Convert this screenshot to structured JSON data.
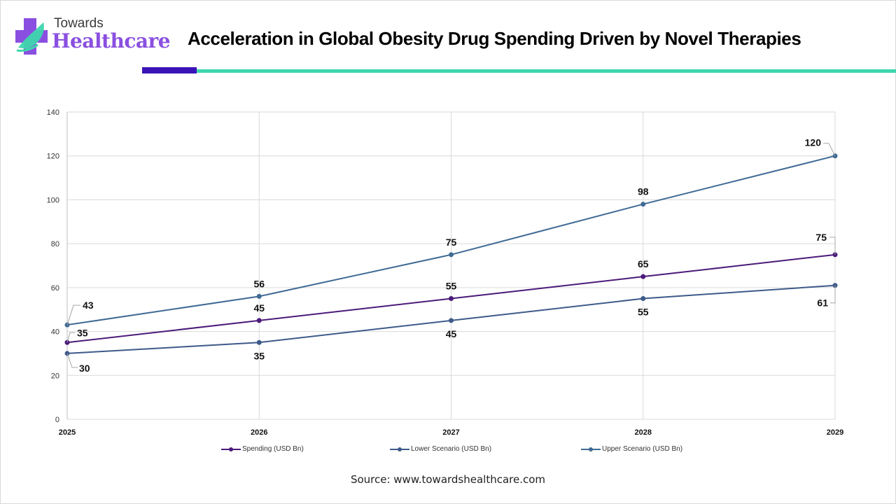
{
  "brand": {
    "line1": "Towards",
    "line2": "Healthcare",
    "icon": "medical-cross-leaf-icon",
    "colors": {
      "purple": "#8a4fe0",
      "teal": "#3ed6ad",
      "dark_purple": "#3a14b8"
    }
  },
  "source": "Source: www.towardshealthcare.com",
  "chart_data": {
    "type": "line",
    "title": "Acceleration in Global Obesity Drug Spending Driven by Novel Therapies",
    "xlabel": "",
    "ylabel": "",
    "categories": [
      "2025",
      "2026",
      "2027",
      "2028",
      "2029"
    ],
    "ylim": [
      0,
      140
    ],
    "yticks": [
      0,
      20,
      40,
      60,
      80,
      100,
      120,
      140
    ],
    "ytick_labels": [
      "0",
      "20",
      "40",
      "60",
      "80",
      "100",
      "120",
      "140"
    ],
    "grid": true,
    "legend_position": "bottom",
    "series": [
      {
        "name": "Spending (USD Bn)",
        "color": "#4b1a7a",
        "values": [
          35,
          45,
          55,
          65,
          75
        ],
        "label_positions": [
          "right",
          "above",
          "above",
          "above",
          "left-above"
        ]
      },
      {
        "name": "Lower Scenario (USD Bn)",
        "color": "#3e5a8a",
        "values": [
          30,
          35,
          45,
          55,
          61
        ],
        "label_positions": [
          "right-below",
          "below",
          "below",
          "below",
          "left-below"
        ]
      },
      {
        "name": "Upper Scenario (USD Bn)",
        "color": "#3f6a94",
        "values": [
          43,
          56,
          75,
          98,
          120
        ],
        "label_positions": [
          "right-above",
          "above",
          "above",
          "above",
          "left-above"
        ]
      }
    ]
  }
}
